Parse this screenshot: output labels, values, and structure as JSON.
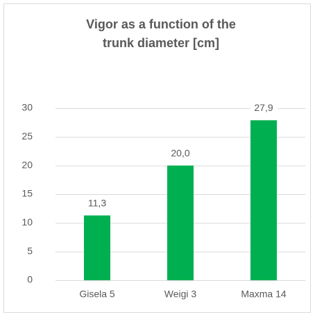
{
  "chart_data": {
    "type": "bar",
    "title": [
      "Vigor as a function of the",
      "trunk diameter [cm]"
    ],
    "categories": [
      "Gisela 5",
      "Weigi 3",
      "Maxma 14"
    ],
    "values": [
      11.3,
      20.0,
      27.9
    ],
    "value_labels": [
      "11,3",
      "20,0",
      "27,9"
    ],
    "color": "#00b050",
    "ylim": [
      0,
      30
    ],
    "yticks": [
      0,
      5,
      10,
      15,
      20,
      25,
      30
    ],
    "grid": true
  }
}
